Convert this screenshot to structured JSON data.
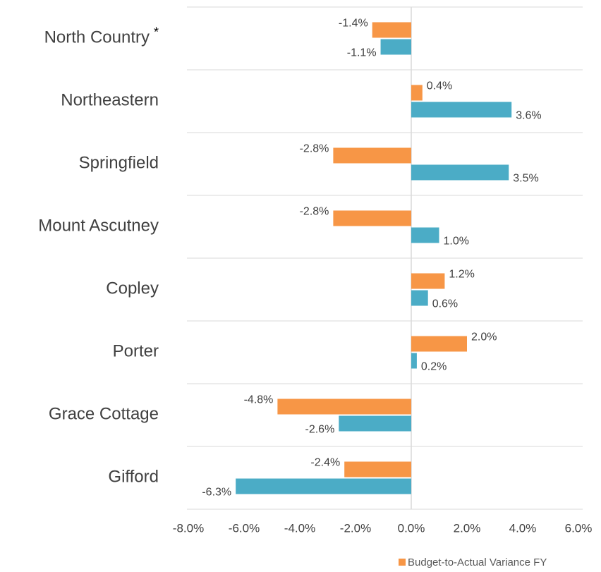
{
  "chart_data": {
    "type": "hbar",
    "categories": [
      "North Country",
      "Northeastern",
      "Springfield",
      "Mount Ascutney",
      "Copley",
      "Porter",
      "Grace Cottage",
      "Gifford"
    ],
    "category_note_marker": "*",
    "series": [
      {
        "name": "Budget-to-Actual Variance FY",
        "color": "#f79646",
        "values": [
          -1.4,
          0.4,
          -2.8,
          -2.8,
          1.2,
          2.0,
          -4.8,
          -2.4
        ],
        "value_labels": [
          "-1.4%",
          "0.4%",
          "-2.8%",
          "-2.8%",
          "1.2%",
          "2.0%",
          "-4.8%",
          "-2.4%"
        ]
      },
      {
        "color": "#4bacc6",
        "values": [
          -1.1,
          3.6,
          3.5,
          1.0,
          0.6,
          0.2,
          -2.6,
          -6.3
        ],
        "value_labels": [
          "-1.1%",
          "3.6%",
          "3.5%",
          "1.0%",
          "0.6%",
          "0.2%",
          "-2.6%",
          "-6.3%"
        ]
      }
    ],
    "xlim": [
      -8,
      6
    ],
    "xticks": [
      {
        "value": -8,
        "label": "-8.0%"
      },
      {
        "value": -6,
        "label": "-6.0%"
      },
      {
        "value": -4,
        "label": "-4.0%"
      },
      {
        "value": -2,
        "label": "-2.0%"
      },
      {
        "value": 0,
        "label": "0.0%"
      },
      {
        "value": 2,
        "label": "2.0%"
      },
      {
        "value": 4,
        "label": "4.0%"
      },
      {
        "value": 6,
        "label": "6.0%"
      }
    ],
    "grid": true,
    "legend": "bottom"
  }
}
